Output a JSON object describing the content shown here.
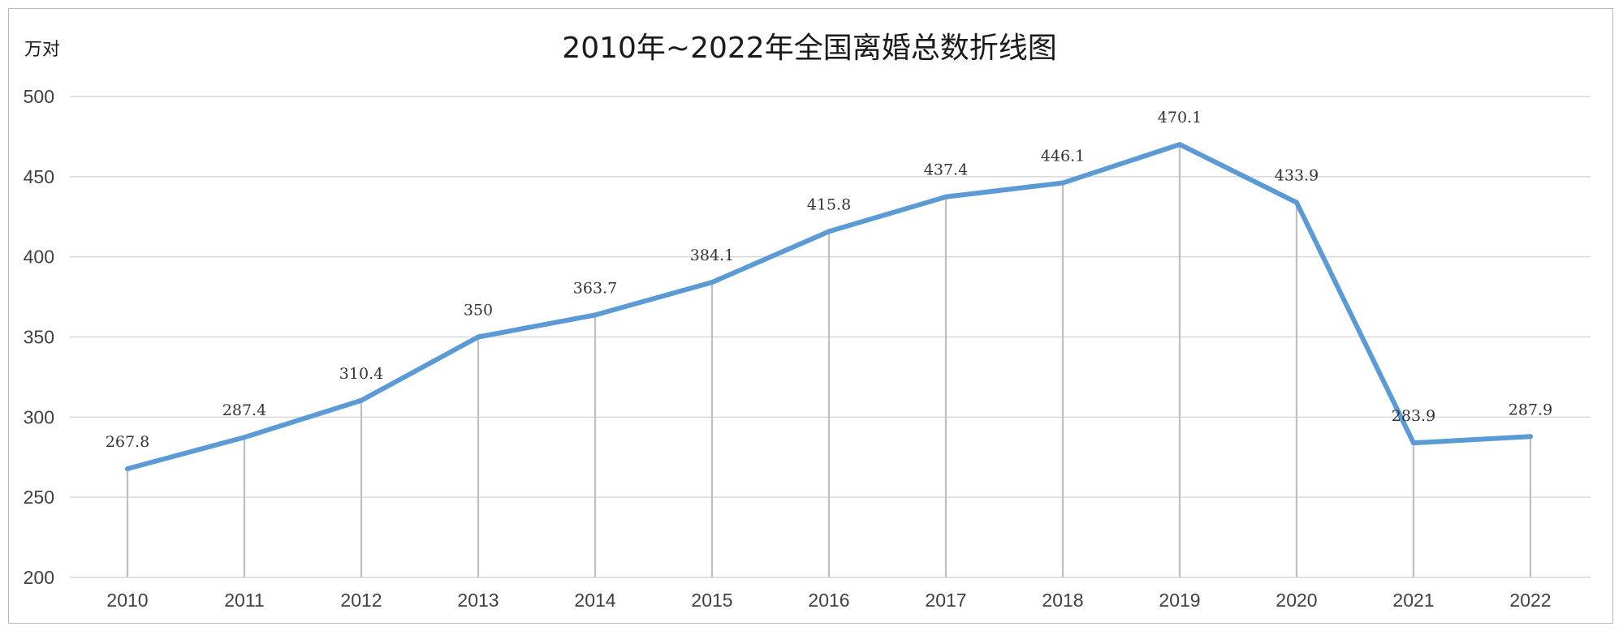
{
  "chart_data": {
    "type": "line",
    "title": "2010年~2022年全国离婚总数折线图",
    "ylabel": "万对",
    "xlabel": "",
    "categories": [
      "2010",
      "2011",
      "2012",
      "2013",
      "2014",
      "2015",
      "2016",
      "2017",
      "2018",
      "2019",
      "2020",
      "2021",
      "2022"
    ],
    "values": [
      267.8,
      287.4,
      310.4,
      350,
      363.7,
      384.1,
      415.8,
      437.4,
      446.1,
      470.1,
      433.9,
      283.9,
      287.9
    ],
    "data_labels": [
      "267.8",
      "287.4",
      "310.4",
      "350",
      "363.7",
      "384.1",
      "415.8",
      "437.4",
      "446.1",
      "470.1",
      "433.9",
      "283.9",
      "287.9"
    ],
    "ylim": [
      200,
      500
    ],
    "yticks": [
      200,
      250,
      300,
      350,
      400,
      450,
      500
    ],
    "grid": true,
    "drop_lines": true,
    "legend": "none",
    "colors": {
      "series": "#5B9BD5",
      "grid": "#d9d9d9",
      "drop_lines": "#bfbfbf",
      "frame": "#b8b8b8"
    }
  }
}
